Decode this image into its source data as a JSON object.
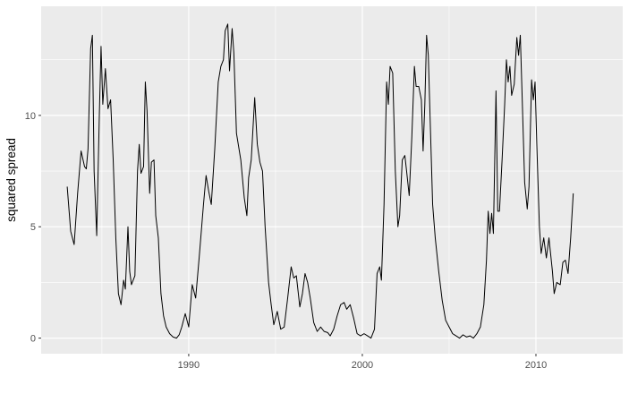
{
  "chart_data": {
    "type": "line",
    "title": "",
    "xlabel": "",
    "ylabel": "squared spread",
    "xlim": [
      1981.5,
      2015.0
    ],
    "ylim": [
      -0.7,
      14.9
    ],
    "x_ticks": [
      1990,
      2000,
      2010
    ],
    "y_ticks": [
      0,
      5,
      10
    ],
    "grid": true,
    "legend": "none",
    "colors": {
      "panel": "#ebebeb",
      "grid": "#ffffff",
      "line": "#000000",
      "tick_text": "#4d4d4d",
      "tick_mark": "#333333"
    },
    "series": [
      {
        "points": [
          [
            1983.0,
            6.8
          ],
          [
            1983.2,
            4.8
          ],
          [
            1983.4,
            4.2
          ],
          [
            1983.6,
            6.5
          ],
          [
            1983.8,
            8.4
          ],
          [
            1984.0,
            7.7
          ],
          [
            1984.1,
            7.6
          ],
          [
            1984.2,
            8.5
          ],
          [
            1984.35,
            13.0
          ],
          [
            1984.45,
            13.6
          ],
          [
            1984.55,
            7.5
          ],
          [
            1984.7,
            4.6
          ],
          [
            1984.85,
            10.0
          ],
          [
            1984.95,
            13.1
          ],
          [
            1985.05,
            10.5
          ],
          [
            1985.2,
            12.1
          ],
          [
            1985.35,
            10.3
          ],
          [
            1985.5,
            10.7
          ],
          [
            1985.65,
            8.0
          ],
          [
            1985.8,
            4.5
          ],
          [
            1985.95,
            2.0
          ],
          [
            1986.1,
            1.5
          ],
          [
            1986.25,
            2.6
          ],
          [
            1986.35,
            2.2
          ],
          [
            1986.5,
            5.0
          ],
          [
            1986.6,
            3.0
          ],
          [
            1986.7,
            2.4
          ],
          [
            1986.9,
            2.8
          ],
          [
            1987.05,
            7.5
          ],
          [
            1987.15,
            8.7
          ],
          [
            1987.25,
            7.4
          ],
          [
            1987.4,
            7.7
          ],
          [
            1987.5,
            11.5
          ],
          [
            1987.6,
            10.2
          ],
          [
            1987.75,
            6.5
          ],
          [
            1987.85,
            7.9
          ],
          [
            1988.0,
            8.0
          ],
          [
            1988.1,
            5.5
          ],
          [
            1988.25,
            4.5
          ],
          [
            1988.4,
            2.0
          ],
          [
            1988.55,
            1.0
          ],
          [
            1988.7,
            0.5
          ],
          [
            1988.9,
            0.2
          ],
          [
            1989.1,
            0.05
          ],
          [
            1989.3,
            0.0
          ],
          [
            1989.45,
            0.15
          ],
          [
            1989.6,
            0.5
          ],
          [
            1989.8,
            1.1
          ],
          [
            1990.0,
            0.5
          ],
          [
            1990.2,
            2.4
          ],
          [
            1990.4,
            1.8
          ],
          [
            1990.6,
            3.6
          ],
          [
            1990.85,
            6.0
          ],
          [
            1991.0,
            7.3
          ],
          [
            1991.15,
            6.6
          ],
          [
            1991.3,
            6.0
          ],
          [
            1991.5,
            8.5
          ],
          [
            1991.7,
            11.5
          ],
          [
            1991.85,
            12.2
          ],
          [
            1992.0,
            12.5
          ],
          [
            1992.1,
            13.8
          ],
          [
            1992.25,
            14.1
          ],
          [
            1992.35,
            12.0
          ],
          [
            1992.5,
            13.9
          ],
          [
            1992.6,
            12.8
          ],
          [
            1992.75,
            9.2
          ],
          [
            1993.0,
            8.0
          ],
          [
            1993.2,
            6.3
          ],
          [
            1993.35,
            5.5
          ],
          [
            1993.45,
            7.2
          ],
          [
            1993.6,
            8.0
          ],
          [
            1993.8,
            10.8
          ],
          [
            1993.95,
            8.7
          ],
          [
            1994.1,
            7.9
          ],
          [
            1994.25,
            7.5
          ],
          [
            1994.4,
            5.0
          ],
          [
            1994.6,
            2.5
          ],
          [
            1994.75,
            1.5
          ],
          [
            1994.9,
            0.6
          ],
          [
            1995.1,
            1.2
          ],
          [
            1995.3,
            0.4
          ],
          [
            1995.5,
            0.5
          ],
          [
            1995.7,
            1.8
          ],
          [
            1995.9,
            3.2
          ],
          [
            1996.05,
            2.7
          ],
          [
            1996.2,
            2.8
          ],
          [
            1996.4,
            1.4
          ],
          [
            1996.55,
            2.0
          ],
          [
            1996.7,
            2.9
          ],
          [
            1996.85,
            2.5
          ],
          [
            1997.0,
            1.8
          ],
          [
            1997.2,
            0.7
          ],
          [
            1997.4,
            0.3
          ],
          [
            1997.6,
            0.5
          ],
          [
            1997.8,
            0.3
          ],
          [
            1998.0,
            0.25
          ],
          [
            1998.15,
            0.1
          ],
          [
            1998.35,
            0.4
          ],
          [
            1998.55,
            1.0
          ],
          [
            1998.75,
            1.5
          ],
          [
            1998.95,
            1.6
          ],
          [
            1999.1,
            1.3
          ],
          [
            1999.3,
            1.5
          ],
          [
            1999.5,
            0.9
          ],
          [
            1999.7,
            0.2
          ],
          [
            1999.9,
            0.1
          ],
          [
            2000.1,
            0.2
          ],
          [
            2000.3,
            0.1
          ],
          [
            2000.5,
            0.0
          ],
          [
            2000.7,
            0.4
          ],
          [
            2000.85,
            2.9
          ],
          [
            2001.0,
            3.2
          ],
          [
            2001.1,
            2.6
          ],
          [
            2001.25,
            6.0
          ],
          [
            2001.4,
            11.5
          ],
          [
            2001.5,
            10.5
          ],
          [
            2001.6,
            12.2
          ],
          [
            2001.75,
            11.9
          ],
          [
            2001.9,
            7.5
          ],
          [
            2002.05,
            5.0
          ],
          [
            2002.15,
            5.5
          ],
          [
            2002.3,
            8.0
          ],
          [
            2002.45,
            8.2
          ],
          [
            2002.55,
            7.5
          ],
          [
            2002.7,
            6.4
          ],
          [
            2002.85,
            9.0
          ],
          [
            2003.0,
            12.2
          ],
          [
            2003.1,
            11.3
          ],
          [
            2003.25,
            11.3
          ],
          [
            2003.4,
            10.7
          ],
          [
            2003.5,
            8.4
          ],
          [
            2003.6,
            10.5
          ],
          [
            2003.7,
            13.6
          ],
          [
            2003.8,
            12.7
          ],
          [
            2003.9,
            10.0
          ],
          [
            2004.05,
            6.0
          ],
          [
            2004.2,
            4.5
          ],
          [
            2004.4,
            3.0
          ],
          [
            2004.6,
            1.7
          ],
          [
            2004.8,
            0.8
          ],
          [
            2005.0,
            0.5
          ],
          [
            2005.2,
            0.2
          ],
          [
            2005.4,
            0.1
          ],
          [
            2005.6,
            0.0
          ],
          [
            2005.8,
            0.15
          ],
          [
            2006.0,
            0.05
          ],
          [
            2006.2,
            0.1
          ],
          [
            2006.4,
            0.0
          ],
          [
            2006.6,
            0.2
          ],
          [
            2006.8,
            0.5
          ],
          [
            2007.0,
            1.5
          ],
          [
            2007.15,
            3.5
          ],
          [
            2007.25,
            5.7
          ],
          [
            2007.35,
            4.7
          ],
          [
            2007.45,
            5.6
          ],
          [
            2007.55,
            4.7
          ],
          [
            2007.7,
            11.1
          ],
          [
            2007.8,
            5.7
          ],
          [
            2007.9,
            5.7
          ],
          [
            2008.05,
            8.0
          ],
          [
            2008.2,
            10.5
          ],
          [
            2008.3,
            12.5
          ],
          [
            2008.4,
            11.5
          ],
          [
            2008.5,
            12.2
          ],
          [
            2008.6,
            10.9
          ],
          [
            2008.75,
            11.4
          ],
          [
            2008.9,
            13.5
          ],
          [
            2009.0,
            12.7
          ],
          [
            2009.1,
            13.6
          ],
          [
            2009.2,
            11.0
          ],
          [
            2009.35,
            7.0
          ],
          [
            2009.5,
            5.8
          ],
          [
            2009.6,
            6.8
          ],
          [
            2009.75,
            11.6
          ],
          [
            2009.85,
            10.7
          ],
          [
            2009.95,
            11.5
          ],
          [
            2010.05,
            8.7
          ],
          [
            2010.2,
            5.0
          ],
          [
            2010.3,
            3.8
          ],
          [
            2010.45,
            4.5
          ],
          [
            2010.6,
            3.6
          ],
          [
            2010.75,
            4.5
          ],
          [
            2010.95,
            3.0
          ],
          [
            2011.05,
            2.0
          ],
          [
            2011.2,
            2.5
          ],
          [
            2011.4,
            2.4
          ],
          [
            2011.55,
            3.4
          ],
          [
            2011.7,
            3.5
          ],
          [
            2011.85,
            2.9
          ],
          [
            2012.0,
            4.5
          ],
          [
            2012.15,
            6.5
          ]
        ]
      }
    ]
  }
}
